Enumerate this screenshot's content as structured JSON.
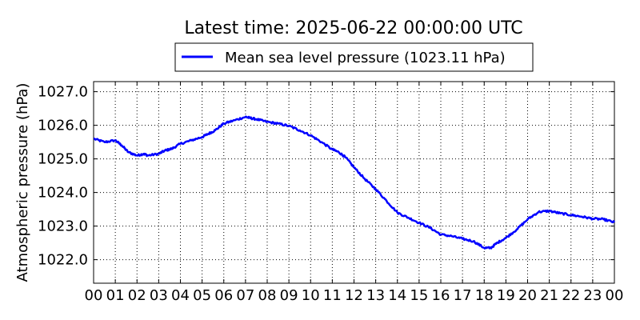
{
  "chart_data": {
    "type": "line",
    "title": "Latest time: 2025-06-22 00:00:00 UTC",
    "ylabel": "Atmospheric pressure (hPa)",
    "xlabel": "",
    "xlim": [
      0,
      24
    ],
    "ylim": [
      1021.3,
      1027.3
    ],
    "grid": true,
    "legend_position": "top-center",
    "x_tick_labels": [
      "00",
      "01",
      "02",
      "03",
      "04",
      "05",
      "06",
      "07",
      "08",
      "09",
      "10",
      "11",
      "12",
      "13",
      "14",
      "15",
      "16",
      "17",
      "18",
      "19",
      "20",
      "21",
      "22",
      "23",
      "00"
    ],
    "y_tick_labels": [
      "1022.0",
      "1023.0",
      "1024.0",
      "1025.0",
      "1026.0",
      "1027.0"
    ],
    "y_ticks": [
      1022,
      1023,
      1024,
      1025,
      1026,
      1027
    ],
    "series": [
      {
        "name": "Mean sea level pressure (1023.11 hPa)",
        "color": "#0000ff",
        "x": [
          0,
          0.5,
          1.0,
          1.3,
          1.6,
          2.0,
          2.3,
          2.5,
          3.0,
          3.3,
          3.6,
          4.0,
          4.5,
          5.0,
          5.3,
          5.6,
          6.0,
          6.5,
          7.0,
          7.2,
          7.5,
          8.0,
          8.5,
          9.0,
          9.5,
          10.0,
          10.5,
          11.0,
          11.3,
          11.6,
          12.0,
          12.5,
          13.0,
          13.5,
          14.0,
          14.5,
          15.0,
          15.5,
          16.0,
          16.5,
          17.0,
          17.5,
          18.0,
          18.3,
          18.6,
          19.0,
          19.5,
          20.0,
          20.5,
          21.0,
          21.5,
          22.0,
          22.5,
          23.0,
          23.5,
          24.0
        ],
        "values": [
          1025.6,
          1025.5,
          1025.55,
          1025.4,
          1025.2,
          1025.1,
          1025.15,
          1025.1,
          1025.15,
          1025.25,
          1025.3,
          1025.45,
          1025.55,
          1025.65,
          1025.75,
          1025.85,
          1026.05,
          1026.15,
          1026.25,
          1026.22,
          1026.18,
          1026.1,
          1026.05,
          1025.98,
          1025.85,
          1025.7,
          1025.5,
          1025.28,
          1025.2,
          1025.05,
          1024.75,
          1024.4,
          1024.1,
          1023.75,
          1023.4,
          1023.25,
          1023.1,
          1022.95,
          1022.75,
          1022.7,
          1022.62,
          1022.55,
          1022.35,
          1022.35,
          1022.5,
          1022.65,
          1022.9,
          1023.2,
          1023.42,
          1023.45,
          1023.38,
          1023.33,
          1023.28,
          1023.22,
          1023.2,
          1023.11
        ]
      }
    ]
  }
}
